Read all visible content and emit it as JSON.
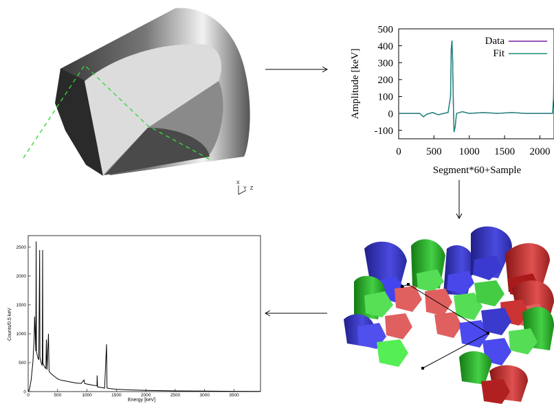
{
  "axes_triad": {
    "x": "X",
    "y": "Y",
    "z": "Z"
  },
  "chart_data": [
    {
      "type": "line",
      "title": "",
      "xlabel": "Segment*60+Sample",
      "ylabel": "Amplitude [keV]",
      "xlim": [
        0,
        2200
      ],
      "ylim": [
        -150,
        500
      ],
      "x_ticks": [
        "0",
        "500",
        "1000",
        "1500",
        "2000"
      ],
      "y_ticks": [
        "-100",
        "0",
        "100",
        "200",
        "300",
        "400",
        "500"
      ],
      "legend_position": "top-right",
      "series": [
        {
          "name": "Data",
          "color": "#7a1fa2",
          "points": [
            [
              0,
              0
            ],
            [
              300,
              0
            ],
            [
              350,
              -20
            ],
            [
              400,
              -5
            ],
            [
              480,
              5
            ],
            [
              560,
              -8
            ],
            [
              640,
              0
            ],
            [
              700,
              5
            ],
            [
              735,
              100
            ],
            [
              745,
              380
            ],
            [
              755,
              430
            ],
            [
              765,
              300
            ],
            [
              775,
              50
            ],
            [
              785,
              -110
            ],
            [
              800,
              -80
            ],
            [
              820,
              0
            ],
            [
              900,
              10
            ],
            [
              1000,
              0
            ],
            [
              1200,
              5
            ],
            [
              1400,
              0
            ],
            [
              1600,
              5
            ],
            [
              1800,
              0
            ],
            [
              2000,
              0
            ],
            [
              2180,
              0
            ],
            [
              2195,
              100
            ],
            [
              2200,
              420
            ]
          ]
        },
        {
          "name": "Fit",
          "color": "#1a8a7a",
          "points": [
            [
              0,
              0
            ],
            [
              300,
              0
            ],
            [
              350,
              -20
            ],
            [
              400,
              -5
            ],
            [
              480,
              5
            ],
            [
              560,
              -8
            ],
            [
              640,
              0
            ],
            [
              700,
              5
            ],
            [
              735,
              100
            ],
            [
              745,
              380
            ],
            [
              755,
              430
            ],
            [
              765,
              300
            ],
            [
              775,
              50
            ],
            [
              785,
              -110
            ],
            [
              800,
              -80
            ],
            [
              820,
              0
            ],
            [
              900,
              10
            ],
            [
              1000,
              0
            ],
            [
              1200,
              5
            ],
            [
              1400,
              0
            ],
            [
              1600,
              5
            ],
            [
              1800,
              0
            ],
            [
              2000,
              0
            ],
            [
              2180,
              0
            ],
            [
              2195,
              100
            ],
            [
              2200,
              420
            ]
          ]
        }
      ]
    },
    {
      "type": "line",
      "title": "",
      "xlabel": "Energy [keV]",
      "ylabel": "Counts/0.5 keV",
      "xlim": [
        0,
        3950
      ],
      "ylim": [
        0,
        2700
      ],
      "x_ticks": [
        "0",
        "500",
        "1000",
        "1500",
        "2000",
        "2500",
        "3000",
        "3500"
      ],
      "y_ticks": [
        "0",
        "500",
        "1000",
        "1500",
        "2000",
        "2500"
      ],
      "series": [
        {
          "name": "",
          "color": "#000000",
          "points": [
            [
              0,
              0
            ],
            [
              20,
              30
            ],
            [
              50,
              200
            ],
            [
              80,
              500
            ],
            [
              100,
              900
            ],
            [
              110,
              1300
            ],
            [
              120,
              1000
            ],
            [
              130,
              700
            ],
            [
              135,
              2600
            ],
            [
              140,
              700
            ],
            [
              160,
              600
            ],
            [
              180,
              550
            ],
            [
              195,
              2450
            ],
            [
              200,
              600
            ],
            [
              220,
              500
            ],
            [
              240,
              450
            ],
            [
              245,
              2450
            ],
            [
              250,
              500
            ],
            [
              280,
              420
            ],
            [
              300,
              400
            ],
            [
              310,
              900
            ],
            [
              320,
              380
            ],
            [
              345,
              1000
            ],
            [
              355,
              350
            ],
            [
              400,
              300
            ],
            [
              450,
              260
            ],
            [
              500,
              220
            ],
            [
              550,
              200
            ],
            [
              600,
              190
            ],
            [
              650,
              180
            ],
            [
              700,
              170
            ],
            [
              800,
              150
            ],
            [
              900,
              140
            ],
            [
              950,
              200
            ],
            [
              960,
              140
            ],
            [
              1000,
              130
            ],
            [
              1100,
              110
            ],
            [
              1170,
              100
            ],
            [
              1172,
              280
            ],
            [
              1180,
              80
            ],
            [
              1250,
              70
            ],
            [
              1300,
              60
            ],
            [
              1332,
              820
            ],
            [
              1340,
              60
            ],
            [
              1400,
              50
            ],
            [
              1500,
              40
            ],
            [
              1700,
              30
            ],
            [
              2000,
              20
            ],
            [
              2500,
              12
            ],
            [
              3000,
              8
            ],
            [
              3500,
              5
            ],
            [
              3950,
              3
            ]
          ]
        }
      ]
    }
  ]
}
